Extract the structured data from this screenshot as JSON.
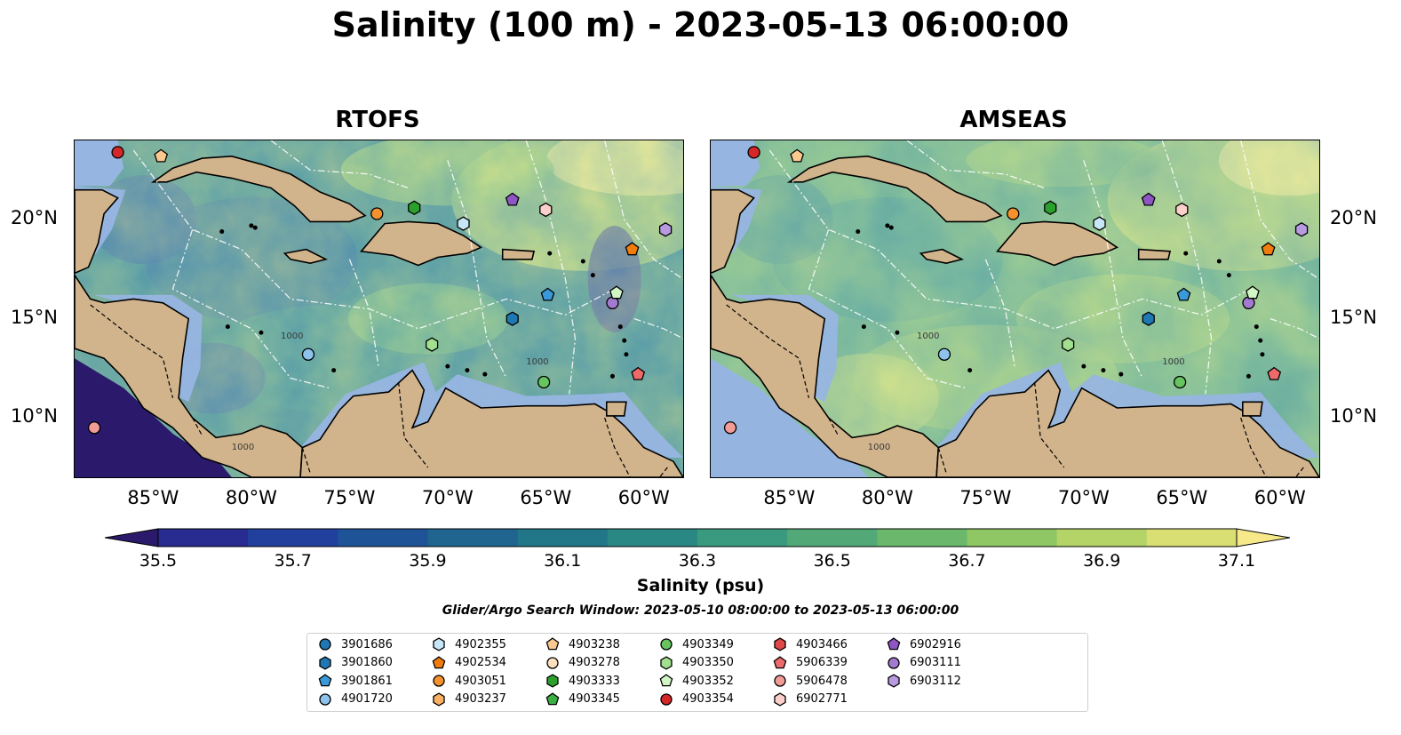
{
  "title": "Salinity (100 m) - 2023-05-13 06:00:00",
  "panels": [
    {
      "name": "RTOFS"
    },
    {
      "name": "AMSEAS"
    }
  ],
  "axes": {
    "x_ticks": [
      "85°W",
      "80°W",
      "75°W",
      "70°W",
      "65°W",
      "60°W"
    ],
    "y_ticks": [
      "20°N",
      "15°N",
      "10°N"
    ]
  },
  "colorbar": {
    "label": "Salinity (psu)",
    "ticks": [
      "35.5",
      "35.7",
      "35.9",
      "36.1",
      "36.3",
      "36.5",
      "36.7",
      "36.9",
      "37.1"
    ],
    "colors": [
      "#2b1a6b",
      "#282b8f",
      "#21409e",
      "#1e5398",
      "#1f6590",
      "#217788",
      "#2a8884",
      "#3a9a7f",
      "#52a977",
      "#6bb86d",
      "#8fc765",
      "#b5d468",
      "#d9df72",
      "#f7e98a"
    ]
  },
  "search_window": "Glider/Argo Search Window: 2023-05-10 08:00:00 to 2023-05-13 06:00:00",
  "contour_label": "1000",
  "legend": [
    {
      "id": "3901686",
      "shape": "circle",
      "color": "#1f77b4"
    },
    {
      "id": "3901860",
      "shape": "hexagon",
      "color": "#1f77b4"
    },
    {
      "id": "3901861",
      "shape": "pentagon",
      "color": "#3a9ad9"
    },
    {
      "id": "4901720",
      "shape": "circle",
      "color": "#8dc3ec"
    },
    {
      "id": "4902355",
      "shape": "hexagon",
      "color": "#c7e6f7"
    },
    {
      "id": "4902534",
      "shape": "pentagon",
      "color": "#f07d0b"
    },
    {
      "id": "4903051",
      "shape": "circle",
      "color": "#f5922e"
    },
    {
      "id": "4903237",
      "shape": "hexagon",
      "color": "#fbb062"
    },
    {
      "id": "4903238",
      "shape": "pentagon",
      "color": "#fbc98f"
    },
    {
      "id": "4903278",
      "shape": "circle",
      "color": "#fde0c0"
    },
    {
      "id": "4903333",
      "shape": "hexagon",
      "color": "#2ca02c"
    },
    {
      "id": "4903345",
      "shape": "pentagon",
      "color": "#3cb043"
    },
    {
      "id": "4903349",
      "shape": "circle",
      "color": "#67c45f"
    },
    {
      "id": "4903350",
      "shape": "hexagon",
      "color": "#a2e08f"
    },
    {
      "id": "4903352",
      "shape": "pentagon",
      "color": "#d2f5c6"
    },
    {
      "id": "4903354",
      "shape": "circle",
      "color": "#d62728"
    },
    {
      "id": "4903466",
      "shape": "hexagon",
      "color": "#e04748"
    },
    {
      "id": "5906339",
      "shape": "pentagon",
      "color": "#ee6a6a"
    },
    {
      "id": "5906478",
      "shape": "circle",
      "color": "#f39c97"
    },
    {
      "id": "6902771",
      "shape": "hexagon",
      "color": "#fbd0cb"
    },
    {
      "id": "6902916",
      "shape": "pentagon",
      "color": "#8e56c3"
    },
    {
      "id": "6903111",
      "shape": "circle",
      "color": "#a27bd1"
    },
    {
      "id": "6903112",
      "shape": "hexagon",
      "color": "#b89ae0"
    }
  ],
  "floats": [
    {
      "id": "4903354",
      "lon": -86.8,
      "lat": 23.4
    },
    {
      "id": "4903238",
      "lon": -84.6,
      "lat": 23.2
    },
    {
      "id": "4903051",
      "lon": -73.6,
      "lat": 20.3
    },
    {
      "id": "4903333",
      "lon": -71.7,
      "lat": 20.6
    },
    {
      "id": "4902355",
      "lon": -69.2,
      "lat": 19.8
    },
    {
      "id": "6902916",
      "lon": -66.7,
      "lat": 21.0
    },
    {
      "id": "6902771",
      "lon": -65.0,
      "lat": 20.5
    },
    {
      "id": "6903112",
      "lon": -58.9,
      "lat": 19.5
    },
    {
      "id": "4902534",
      "lon": -60.6,
      "lat": 18.5
    },
    {
      "id": "3901861",
      "lon": -64.9,
      "lat": 16.2
    },
    {
      "id": "3901860",
      "lon": -66.7,
      "lat": 15.0
    },
    {
      "id": "6903111",
      "lon": -61.6,
      "lat": 15.8
    },
    {
      "id": "4903352",
      "lon": -61.4,
      "lat": 16.3
    },
    {
      "id": "4903350",
      "lon": -70.8,
      "lat": 13.7
    },
    {
      "id": "4901720",
      "lon": -77.1,
      "lat": 13.2
    },
    {
      "id": "4903349",
      "lon": -65.1,
      "lat": 11.8
    },
    {
      "id": "5906339",
      "lon": -60.3,
      "lat": 12.2
    },
    {
      "id": "5906478",
      "lon": -88.0,
      "lat": 9.5
    }
  ]
}
